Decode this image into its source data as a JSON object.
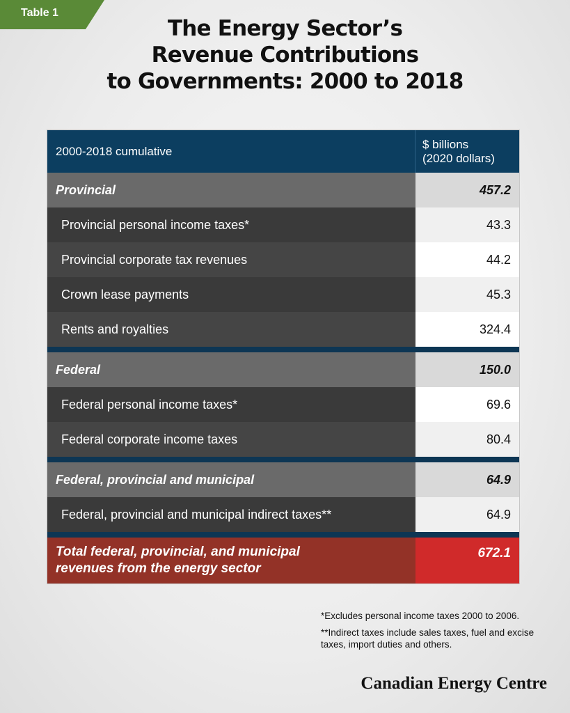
{
  "badge": "Table 1",
  "title_lines": [
    "The Energy Sector’s",
    "Revenue Contributions",
    "to Governments: 2000 to 2018"
  ],
  "table": {
    "header": {
      "label": "2000-2018 cumulative",
      "unit_line1": "$ billions",
      "unit_line2": "(2020 dollars)"
    },
    "provincial": {
      "label": "Provincial",
      "value": "457.2",
      "items": [
        {
          "label": "Provincial personal income taxes*",
          "value": "43.3"
        },
        {
          "label": "Provincial corporate tax revenues",
          "value": "44.2"
        },
        {
          "label": "Crown lease payments",
          "value": "45.3"
        },
        {
          "label": "Rents and royalties",
          "value": "324.4"
        }
      ]
    },
    "federal": {
      "label": "Federal",
      "value": "150.0",
      "items": [
        {
          "label": "Federal personal income taxes*",
          "value": "69.6"
        },
        {
          "label": "Federal corporate income taxes",
          "value": "80.4"
        }
      ]
    },
    "combined": {
      "label": "Federal, provincial and municipal",
      "value": "64.9",
      "items": [
        {
          "label": "Federal, provincial and municipal indirect taxes**",
          "value": "64.9"
        }
      ]
    },
    "total": {
      "label_line1": "Total federal, provincial, and municipal",
      "label_line2": "revenues from the energy sector",
      "value": "672.1"
    }
  },
  "notes": {
    "note1": "*Excludes personal income taxes 2000 to 2006.",
    "note2": "**Indirect taxes include sales taxes, fuel and excise taxes, import duties and others."
  },
  "brand": "Canadian Energy Centre"
}
